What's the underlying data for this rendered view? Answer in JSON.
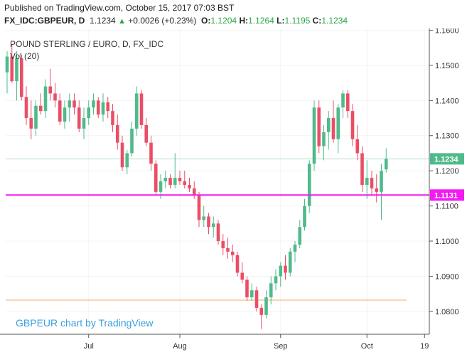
{
  "header": {
    "published": "Published on TradingView.com, October 15, 2017 07:03 BST",
    "symbol": "FX_IDC:GBPEUR, D",
    "last": "1.1234",
    "change": "+0.0026 (+0.23%)",
    "o_label": "O:",
    "o_value": "1.1204",
    "h_label": "H:",
    "h_value": "1.1264",
    "l_label": "L:",
    "l_value": "1.1195",
    "c_label": "C:",
    "c_value": "1.1234"
  },
  "legend": {
    "title": "POUND STERLING / EURO, D, FX_IDC",
    "volume": "Vol (20)"
  },
  "watermark": "GBPEUR chart by TradingView",
  "colors": {
    "up": "#4fba8a",
    "down": "#ea4e66",
    "hline": "#f21bf2",
    "price_badge": "#4fba8a",
    "hline_badge": "#f21bf2"
  },
  "chart_data": {
    "type": "candlestick",
    "y_axis": {
      "ylim": [
        1.0735,
        1.1605
      ],
      "ticks": [
        "1.1600",
        "1.1500",
        "1.1400",
        "1.1300",
        "1.1200",
        "1.1100",
        "1.1000",
        "1.0900",
        "1.0800"
      ]
    },
    "x_axis": {
      "labels": [
        "Jul",
        "Aug",
        "Sep",
        "Oct",
        "19"
      ]
    },
    "last_price_label": "1.1234",
    "hline_label": "1.1131",
    "hline_value": 1.1131,
    "candles": [
      [
        1.148,
        1.154,
        1.142,
        1.1525
      ],
      [
        1.1525,
        1.156,
        1.145,
        1.1455
      ],
      [
        1.1455,
        1.154,
        1.14,
        1.152
      ],
      [
        1.152,
        1.153,
        1.14,
        1.141
      ],
      [
        1.141,
        1.144,
        1.133,
        1.135
      ],
      [
        1.135,
        1.14,
        1.129,
        1.132
      ],
      [
        1.132,
        1.14,
        1.13,
        1.1385
      ],
      [
        1.1385,
        1.142,
        1.136,
        1.137
      ],
      [
        1.137,
        1.146,
        1.135,
        1.144
      ],
      [
        1.144,
        1.149,
        1.14,
        1.142
      ],
      [
        1.142,
        1.145,
        1.138,
        1.14
      ],
      [
        1.14,
        1.142,
        1.133,
        1.134
      ],
      [
        1.134,
        1.14,
        1.132,
        1.138
      ],
      [
        1.138,
        1.142,
        1.134,
        1.14
      ],
      [
        1.14,
        1.142,
        1.136,
        1.138
      ],
      [
        1.138,
        1.14,
        1.131,
        1.132
      ],
      [
        1.132,
        1.138,
        1.129,
        1.135
      ],
      [
        1.135,
        1.14,
        1.133,
        1.138
      ],
      [
        1.138,
        1.142,
        1.136,
        1.14
      ],
      [
        1.14,
        1.141,
        1.135,
        1.136
      ],
      [
        1.136,
        1.142,
        1.134,
        1.1395
      ],
      [
        1.1395,
        1.141,
        1.135,
        1.137
      ],
      [
        1.137,
        1.139,
        1.131,
        1.133
      ],
      [
        1.133,
        1.136,
        1.126,
        1.128
      ],
      [
        1.128,
        1.13,
        1.12,
        1.121
      ],
      [
        1.121,
        1.126,
        1.119,
        1.125
      ],
      [
        1.125,
        1.134,
        1.124,
        1.132
      ],
      [
        1.132,
        1.144,
        1.13,
        1.142
      ],
      [
        1.142,
        1.143,
        1.132,
        1.133
      ],
      [
        1.133,
        1.135,
        1.127,
        1.128
      ],
      [
        1.128,
        1.13,
        1.12,
        1.122
      ],
      [
        1.122,
        1.123,
        1.113,
        1.114
      ],
      [
        1.114,
        1.119,
        1.112,
        1.117
      ],
      [
        1.117,
        1.12,
        1.115,
        1.118
      ],
      [
        1.118,
        1.119,
        1.115,
        1.116
      ],
      [
        1.116,
        1.125,
        1.115,
        1.118
      ],
      [
        1.118,
        1.12,
        1.116,
        1.117
      ],
      [
        1.117,
        1.12,
        1.115,
        1.116
      ],
      [
        1.116,
        1.118,
        1.114,
        1.115
      ],
      [
        1.115,
        1.117,
        1.112,
        1.113
      ],
      [
        1.113,
        1.114,
        1.104,
        1.106
      ],
      [
        1.106,
        1.11,
        1.104,
        1.107
      ],
      [
        1.107,
        1.108,
        1.102,
        1.104
      ],
      [
        1.104,
        1.107,
        1.101,
        1.105
      ],
      [
        1.105,
        1.106,
        1.099,
        1.1
      ],
      [
        1.1,
        1.102,
        1.096,
        1.098
      ],
      [
        1.098,
        1.101,
        1.095,
        1.097
      ],
      [
        1.097,
        1.099,
        1.094,
        1.096
      ],
      [
        1.096,
        1.097,
        1.09,
        1.091
      ],
      [
        1.091,
        1.094,
        1.088,
        1.089
      ],
      [
        1.089,
        1.09,
        1.083,
        1.084
      ],
      [
        1.084,
        1.088,
        1.083,
        1.086
      ],
      [
        1.086,
        1.087,
        1.08,
        1.081
      ],
      [
        1.081,
        1.082,
        1.075,
        1.079
      ],
      [
        1.079,
        1.086,
        1.078,
        1.084
      ],
      [
        1.084,
        1.09,
        1.082,
        1.088
      ],
      [
        1.088,
        1.092,
        1.086,
        1.09
      ],
      [
        1.09,
        1.094,
        1.087,
        1.093
      ],
      [
        1.093,
        1.096,
        1.089,
        1.091
      ],
      [
        1.091,
        1.098,
        1.09,
        1.097
      ],
      [
        1.097,
        1.1,
        1.094,
        1.099
      ],
      [
        1.099,
        1.106,
        1.098,
        1.104
      ],
      [
        1.104,
        1.112,
        1.103,
        1.11
      ],
      [
        1.11,
        1.123,
        1.108,
        1.122
      ],
      [
        1.122,
        1.14,
        1.12,
        1.138
      ],
      [
        1.138,
        1.14,
        1.125,
        1.127
      ],
      [
        1.127,
        1.133,
        1.123,
        1.131
      ],
      [
        1.131,
        1.137,
        1.126,
        1.135
      ],
      [
        1.135,
        1.14,
        1.128,
        1.129
      ],
      [
        1.129,
        1.139,
        1.125,
        1.138
      ],
      [
        1.138,
        1.143,
        1.135,
        1.142
      ],
      [
        1.142,
        1.143,
        1.135,
        1.137
      ],
      [
        1.137,
        1.139,
        1.127,
        1.129
      ],
      [
        1.129,
        1.133,
        1.123,
        1.125
      ],
      [
        1.125,
        1.127,
        1.114,
        1.116
      ],
      [
        1.116,
        1.123,
        1.112,
        1.118
      ],
      [
        1.118,
        1.12,
        1.113,
        1.115
      ],
      [
        1.115,
        1.119,
        1.111,
        1.114
      ],
      [
        1.114,
        1.122,
        1.106,
        1.12
      ],
      [
        1.1204,
        1.1264,
        1.1195,
        1.1234
      ]
    ]
  }
}
